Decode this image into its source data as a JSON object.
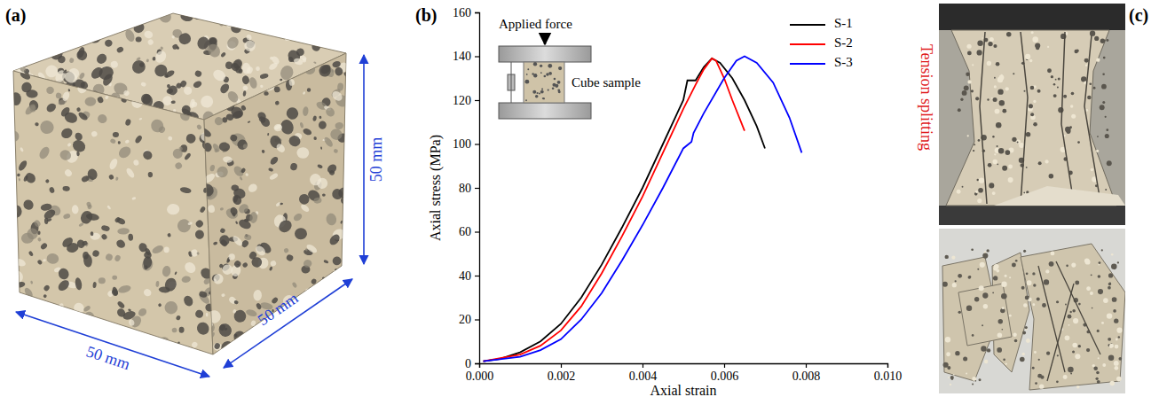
{
  "chart_data": {
    "type": "line",
    "panel_label": "(b)",
    "x_label": "Axial strain",
    "y_label": "Axial stress (MPa)",
    "inset_labels": [
      "Applied force",
      "Cube sample"
    ],
    "xlim": [
      0,
      0.01
    ],
    "xticks": [
      {
        "value": 0,
        "label": "0.000"
      },
      0.002,
      0.004,
      0.006,
      0.008,
      {
        "value": 0.01,
        "label": "0.010"
      }
    ],
    "ylim": [
      0,
      160
    ],
    "yticks": [
      0,
      20,
      40,
      60,
      80,
      100,
      120,
      140,
      160
    ],
    "grid": false,
    "legend": "upper right",
    "series": [
      {
        "name": "S-1",
        "color": "#000000",
        "x": [
          0.0001,
          0.0005,
          0.001,
          0.0015,
          0.002,
          0.0025,
          0.003,
          0.0035,
          0.004,
          0.0045,
          0.005,
          0.0051,
          0.0053,
          0.0055,
          0.0057,
          0.0059,
          0.0062,
          0.0065,
          0.0068,
          0.007
        ],
        "values": [
          1,
          2,
          5,
          10,
          18,
          30,
          45,
          62,
          80,
          100,
          120,
          129,
          129,
          135,
          139,
          137,
          130,
          120,
          108,
          98
        ]
      },
      {
        "name": "S-2",
        "color": "#ff0000",
        "x": [
          0.0001,
          0.001,
          0.0015,
          0.002,
          0.0025,
          0.003,
          0.0035,
          0.004,
          0.0045,
          0.005,
          0.0053,
          0.0055,
          0.0057,
          0.0058,
          0.006,
          0.0062,
          0.0065
        ],
        "values": [
          1,
          4,
          8,
          15,
          26,
          41,
          58,
          76,
          96,
          116,
          127,
          134,
          139,
          138,
          130,
          120,
          106
        ]
      },
      {
        "name": "S-3",
        "color": "#0000ff",
        "x": [
          0.0001,
          0.001,
          0.0015,
          0.002,
          0.0025,
          0.003,
          0.0035,
          0.004,
          0.0045,
          0.005,
          0.0052,
          0.00525,
          0.0055,
          0.006,
          0.0063,
          0.0065,
          0.0068,
          0.0072,
          0.0076,
          0.0079
        ],
        "values": [
          1,
          3,
          6,
          11,
          20,
          32,
          47,
          63,
          80,
          98,
          101,
          105,
          114,
          130,
          138,
          140,
          137,
          128,
          112,
          96
        ]
      }
    ]
  },
  "panel_a": {
    "label": "(a)",
    "dimensions": [
      "50 mm",
      "50 mm",
      "50 mm"
    ]
  },
  "panel_c": {
    "label": "(c)",
    "caption": "Tension splitting"
  }
}
